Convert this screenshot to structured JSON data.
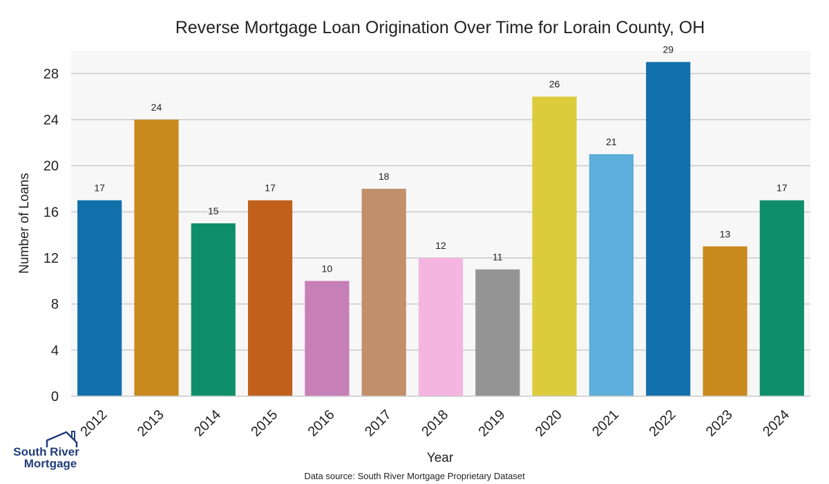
{
  "chart_data": {
    "type": "bar",
    "title": "Reverse Mortgage Loan Origination Over Time for Lorain County, OH",
    "xlabel": "Year",
    "ylabel": "Number of Loans",
    "categories": [
      "2012",
      "2013",
      "2014",
      "2015",
      "2016",
      "2017",
      "2018",
      "2019",
      "2020",
      "2021",
      "2022",
      "2023",
      "2024"
    ],
    "values": [
      17,
      24,
      15,
      17,
      10,
      18,
      12,
      11,
      26,
      21,
      29,
      13,
      17
    ],
    "colors": [
      "#1170aa",
      "#c98a1d",
      "#0f8f69",
      "#c0601b",
      "#c77fb8",
      "#c18f6a",
      "#f5b5e1",
      "#949494",
      "#dccc3c",
      "#5eaedc",
      "#1170aa",
      "#c98a1d",
      "#0f8f69"
    ],
    "ylim": [
      0,
      30
    ],
    "yticks": [
      0,
      4,
      8,
      12,
      16,
      20,
      24,
      28
    ],
    "grid": true,
    "background": "#f7f7f7",
    "source": "Data source: South River Mortgage Proprietary Dataset"
  },
  "logo": {
    "line1": "South River",
    "line2": "Mortgage",
    "color": "#1f3d78"
  }
}
